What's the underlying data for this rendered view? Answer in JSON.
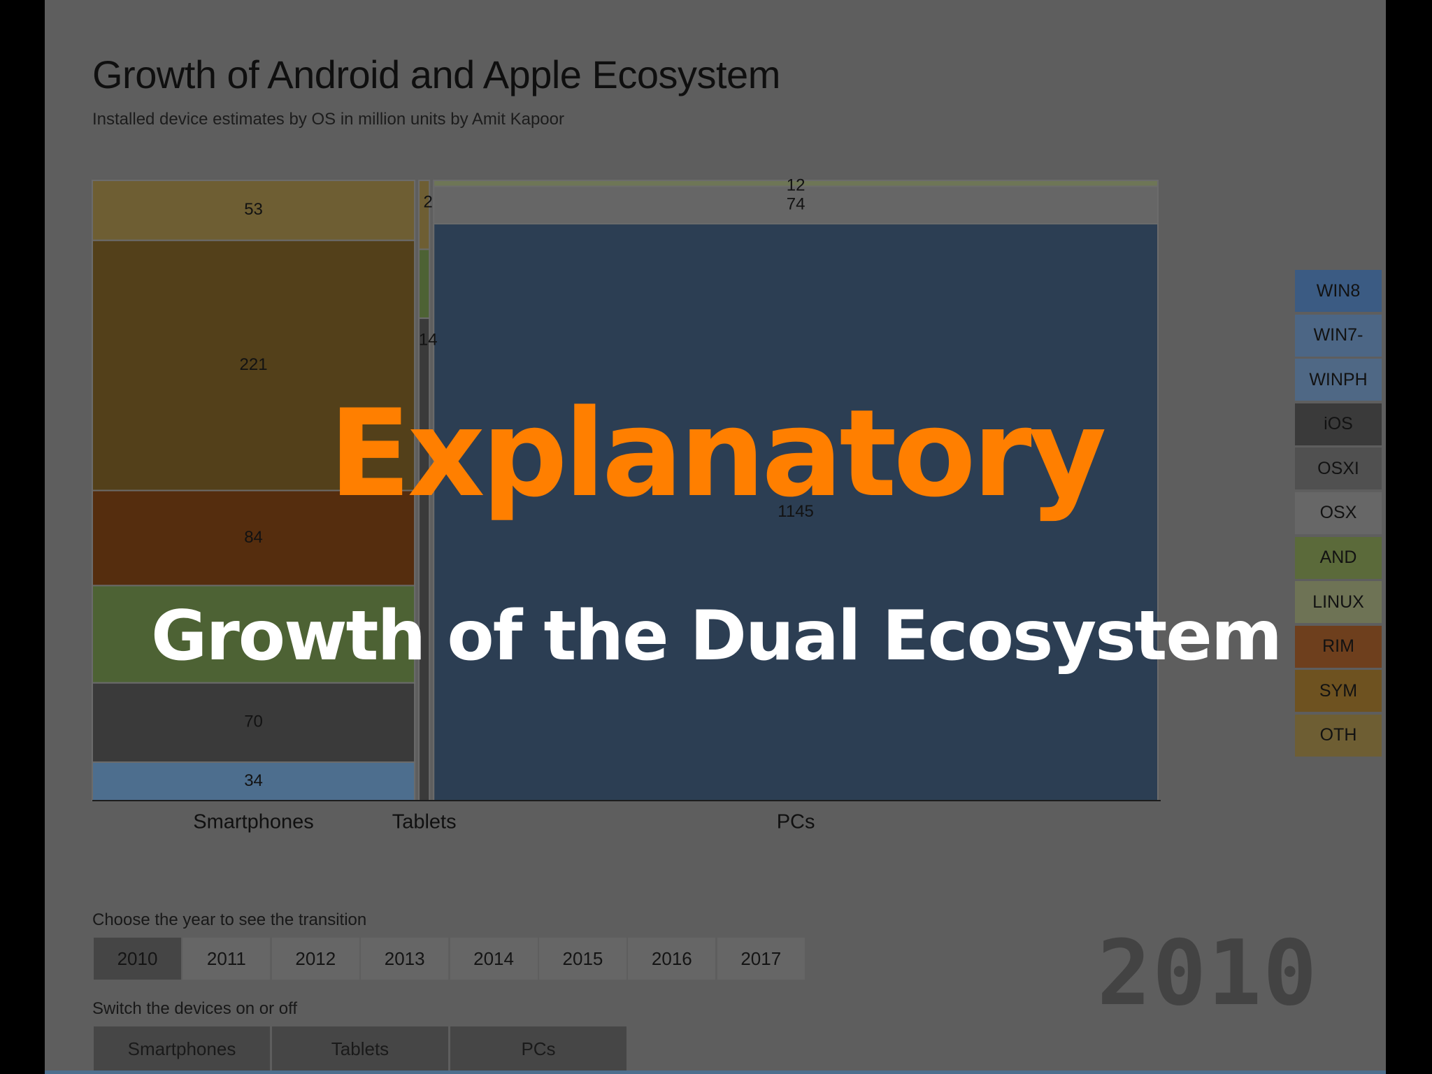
{
  "chart_data": {
    "type": "mosaic",
    "title": "Growth of Android and Apple Ecosystem",
    "subtitle": "Installed device estimates by OS in million units by Amit Kapoor",
    "categories": [
      "Smartphones",
      "Tablets",
      "PCs"
    ],
    "series_order": [
      "WIN8",
      "WIN7-",
      "WINPH",
      "iOS",
      "OSXI",
      "OSX",
      "AND",
      "LINUX",
      "RIM",
      "SYM",
      "OTH"
    ],
    "values": {
      "Smartphones": {
        "OTH": 53,
        "SYM": 221,
        "RIM": 84,
        "AND": 86,
        "iOS": 70,
        "WINPH": 34
      },
      "Tablets": {
        "OTH": 2,
        "AND": 2,
        "iOS": 14
      },
      "PCs": {
        "LINUX": 12,
        "OSX": 74,
        "WIN7-": 1145
      }
    },
    "data_labels": {
      "Smartphones": [
        "53",
        "221",
        "84",
        "70",
        "34"
      ],
      "Tablets": [
        "2",
        "14"
      ],
      "PCs": [
        "12",
        "74",
        "1145"
      ]
    },
    "colors": {
      "WIN8": "#2d5d8e",
      "WIN7-": "#2c3e53",
      "WINPH": "#4d6e8e",
      "iOS": "#3a3a3a",
      "OSXI": "#505050",
      "OSX": "#666666",
      "AND": "#4d6234",
      "LINUX": "#6e7656",
      "RIM": "#552d0e",
      "SYM": "#53401a",
      "OTH": "#6e5e33"
    },
    "year": "2010"
  },
  "legend": {
    "items": [
      "WIN8",
      "WIN7-",
      "WINPH",
      "iOS",
      "OSXI",
      "OSX",
      "AND",
      "LINUX",
      "RIM",
      "SYM",
      "OTH"
    ],
    "colors": [
      "#3b5b83",
      "#4c6685",
      "#4f6885",
      "#3a3a3a",
      "#505050",
      "#676767",
      "#5b6a3a",
      "#6e7355",
      "#6e3f1d",
      "#6e5220",
      "#6e5e33"
    ]
  },
  "controls": {
    "year_label": "Choose the year to see the transition",
    "years": [
      "2010",
      "2011",
      "2012",
      "2013",
      "2014",
      "2015",
      "2016",
      "2017"
    ],
    "selected_year": "2010",
    "device_label": "Switch the devices on or off",
    "devices": [
      "Smartphones",
      "Tablets",
      "PCs"
    ]
  },
  "overlay": {
    "heading": "Explanatory",
    "subheading": "Growth of the Dual Ecosystem"
  },
  "year_display": "2010"
}
